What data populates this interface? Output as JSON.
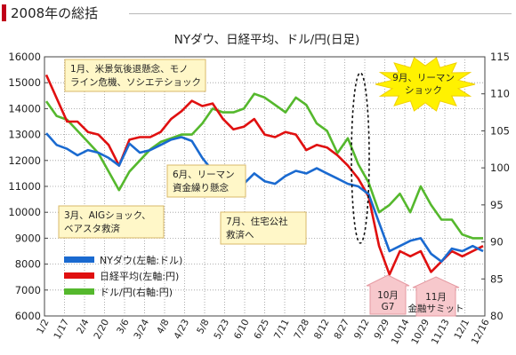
{
  "header": {
    "title": "2008年の総括"
  },
  "chart_data": {
    "type": "line",
    "title": "NYダウ、日経平均、ドル/円(日足)",
    "y_left": {
      "min": 6000,
      "max": 16000,
      "ticks": [
        "16000",
        "15000",
        "14000",
        "13000",
        "12000",
        "11000",
        "10000",
        "9000",
        "8000",
        "7000",
        "6000"
      ]
    },
    "y_right": {
      "min": 80,
      "max": 115,
      "ticks": [
        "115",
        "110",
        "105",
        "100",
        "95",
        "90",
        "85",
        "80"
      ]
    },
    "x_labels": [
      "1/2",
      "1/17",
      "2/4",
      "2/20",
      "3/6",
      "3/24",
      "4/8",
      "4/23",
      "5/8",
      "5/23",
      "6/10",
      "6/25",
      "7/11",
      "7/28",
      "8/12",
      "8/27",
      "9/12",
      "9/29",
      "10/14",
      "10/29",
      "11/13",
      "12/1",
      "12/16"
    ],
    "series": [
      {
        "name": "NYダウ(左軸:ドル)",
        "axis": "left",
        "color": "#1a6ad0",
        "values": [
          13050,
          12600,
          12450,
          12200,
          12400,
          12300,
          12100,
          11800,
          12650,
          12300,
          12400,
          12600,
          12800,
          12900,
          12750,
          12100,
          11600,
          11700,
          11200,
          11100,
          11500,
          11200,
          11100,
          11400,
          11600,
          11500,
          11700,
          11500,
          11300,
          11100,
          11000,
          10700,
          9600,
          8500,
          8700,
          8900,
          9000,
          8400,
          8100,
          8600,
          8500,
          8700,
          8500
        ]
      },
      {
        "name": "日経平均(左軸:円)",
        "axis": "left",
        "color": "#e01010",
        "values": [
          15300,
          14400,
          13500,
          13500,
          13100,
          13000,
          12600,
          11800,
          12800,
          12900,
          12900,
          13100,
          13600,
          13900,
          14300,
          14100,
          14200,
          13600,
          13200,
          13300,
          13600,
          13000,
          12900,
          13100,
          13000,
          12400,
          12600,
          12500,
          12200,
          11800,
          11300,
          10600,
          8700,
          7600,
          8500,
          8300,
          8500,
          7700,
          8100,
          8500,
          8300,
          8500,
          8700
        ]
      },
      {
        "name": "ドル/円(右軸:円)",
        "axis": "right",
        "color": "#55b82d",
        "values": [
          109,
          107,
          106.5,
          105,
          103.5,
          102,
          99.5,
          97,
          99.5,
          101,
          102.5,
          103.5,
          104,
          104.5,
          104.5,
          106,
          108,
          107.5,
          107.5,
          108,
          110,
          109.5,
          108.5,
          107.5,
          109.5,
          108.5,
          106,
          105,
          102,
          104,
          100.5,
          98,
          94,
          95,
          96.5,
          94,
          97.5,
          95,
          93,
          93,
          91,
          90.5,
          90.5
        ]
      }
    ],
    "annotations": [
      {
        "id": "ann-jan",
        "lines": [
          "1月、米景気後退懸念、モノ",
          "ライン危機、ソシエテショック"
        ]
      },
      {
        "id": "ann-sep",
        "lines": [
          "9月、リーマン",
          "ショック"
        ]
      },
      {
        "id": "ann-jun",
        "lines": [
          "6月、リーマン",
          "資金繰り懸念"
        ]
      },
      {
        "id": "ann-mar",
        "lines": [
          "3月、AIGショック、",
          "ベアスタ救済"
        ]
      },
      {
        "id": "ann-jul",
        "lines": [
          "7月、住宅公社",
          "救済へ"
        ]
      },
      {
        "id": "ann-oct",
        "lines": [
          "10月",
          "G7"
        ]
      },
      {
        "id": "ann-nov",
        "lines": [
          "11月",
          "金融サミット"
        ]
      }
    ]
  }
}
